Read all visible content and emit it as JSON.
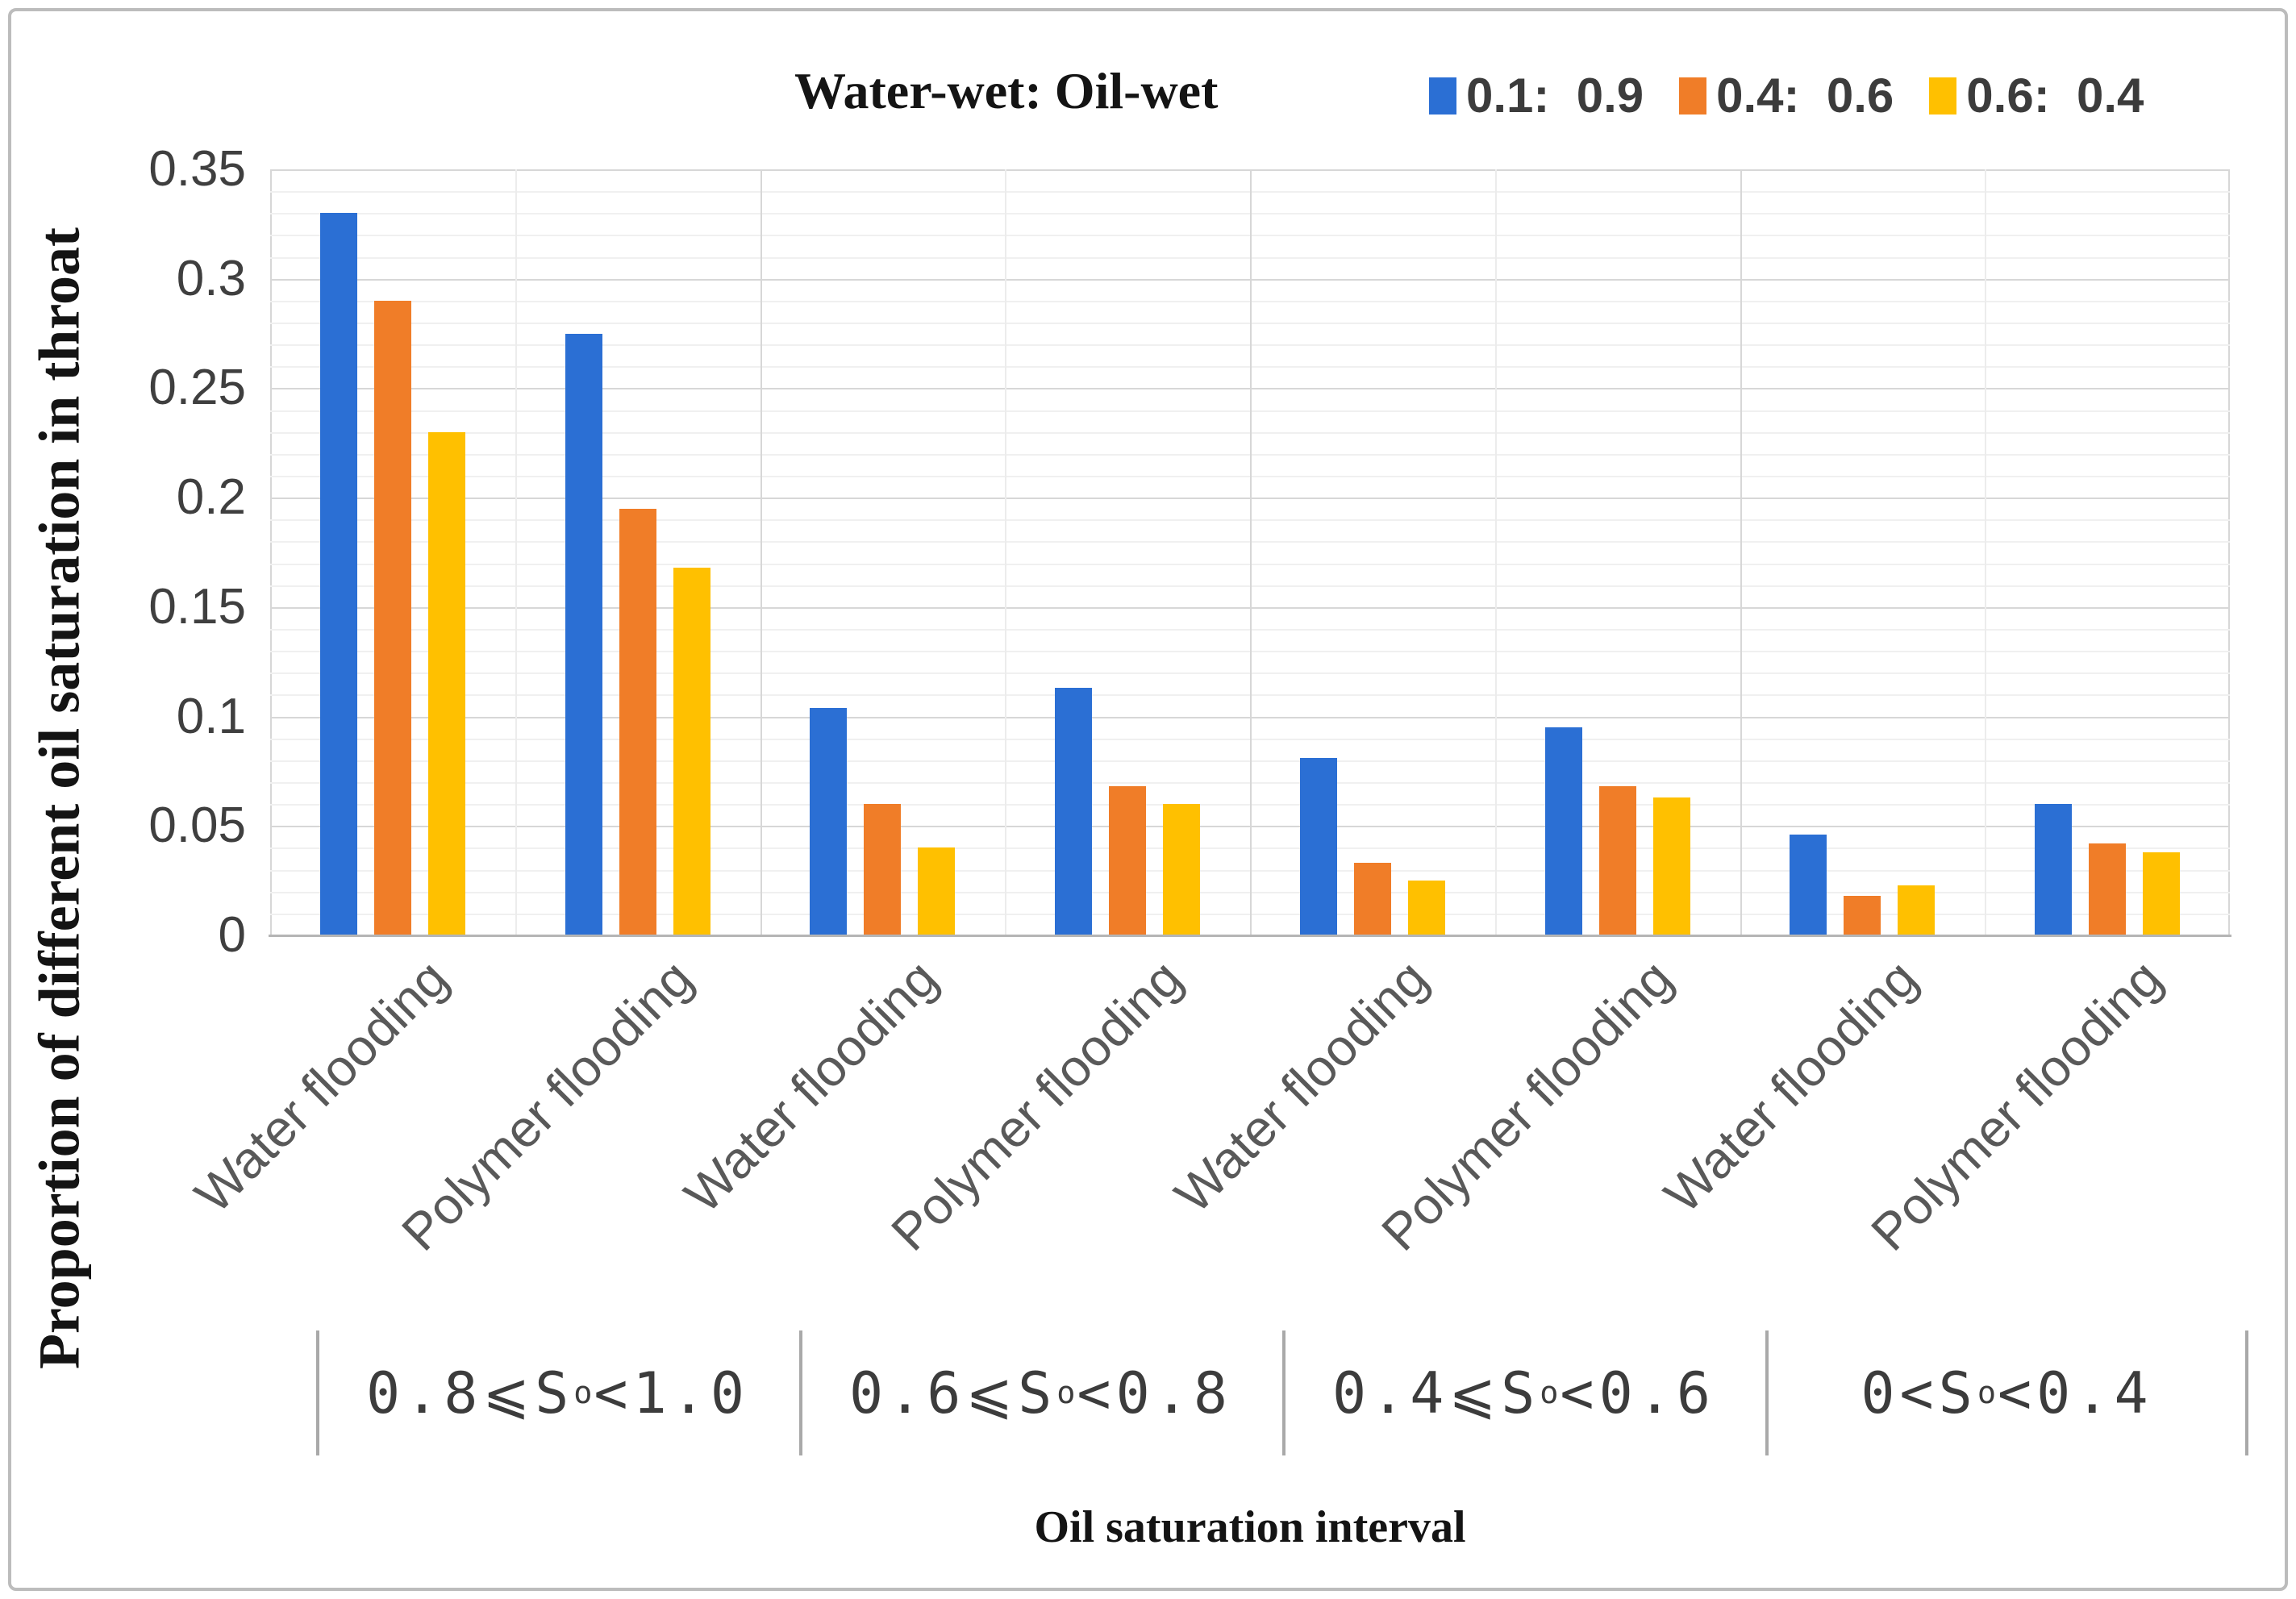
{
  "chart_data": {
    "type": "bar",
    "legend": {
      "title": "Water-wet: Oil-wet",
      "position": "top-right"
    },
    "x_axis": {
      "title": "Oil saturation interval",
      "categories": [
        "Water flooding",
        "Polymer flooding",
        "Water flooding",
        "Polymer flooding",
        "Water flooding",
        "Polymer flooding",
        "Water flooding",
        "Polymer flooding"
      ],
      "group_labels": [
        {
          "pre": "0.8⩽S",
          "sub": "o",
          "post": "<1.0",
          "span": 2
        },
        {
          "pre": "0.6⩽S",
          "sub": "o",
          "post": "<0.8",
          "span": 2
        },
        {
          "pre": "0.4⩽S",
          "sub": "o",
          "post": "<0.6",
          "span": 2
        },
        {
          "pre": "0<S",
          "sub": "o",
          "post": "<0.4",
          "span": 2
        }
      ]
    },
    "y_axis": {
      "title": "Proportion of different oil saturation in throat",
      "min": 0,
      "max": 0.35,
      "major_unit": 0.05,
      "minor_unit": 0.01,
      "tick_labels": [
        "0",
        "0.05",
        "0.1",
        "0.15",
        "0.2",
        "0.25",
        "0.3",
        "0.35"
      ]
    },
    "grid": {
      "horizontal": true,
      "vertical": true
    },
    "series": [
      {
        "name": "0.1:  0.9",
        "color": "#2B6FD4",
        "values": [
          0.33,
          0.275,
          0.104,
          0.113,
          0.081,
          0.095,
          0.046,
          0.06
        ]
      },
      {
        "name": "0.4:  0.6",
        "color": "#F07D28",
        "values": [
          0.29,
          0.195,
          0.06,
          0.068,
          0.033,
          0.068,
          0.018,
          0.042
        ]
      },
      {
        "name": "0.6:  0.4",
        "color": "#FFC000",
        "values": [
          0.23,
          0.168,
          0.04,
          0.06,
          0.025,
          0.063,
          0.023,
          0.038
        ]
      }
    ]
  }
}
